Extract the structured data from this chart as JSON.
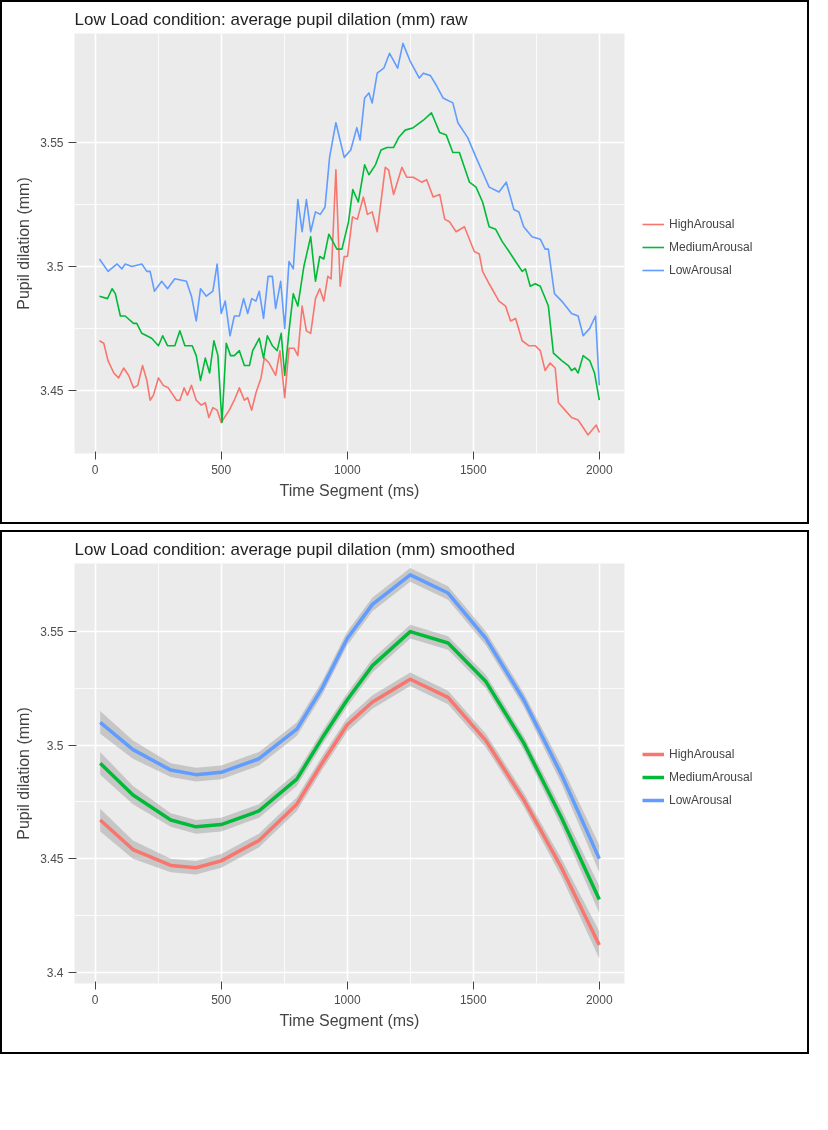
{
  "chart_data": [
    {
      "type": "line",
      "title": "Low Load condition: average pupil dilation (mm) raw",
      "xlabel": "Time Segment (ms)",
      "ylabel": "Pupil dilation (mm)",
      "xlim": [
        -82,
        2100
      ],
      "ylim": [
        3.4245,
        3.594
      ],
      "xticks": [
        0,
        500,
        1000,
        1500,
        2000
      ],
      "yticks": [
        3.45,
        3.5,
        3.55
      ],
      "grid": true,
      "legend": "right",
      "line_style": "solid",
      "series": [
        {
          "name": "HighArousal",
          "color": "#f8766d",
          "x": [
            17,
            34,
            51,
            74,
            93,
            113,
            133,
            152,
            169,
            188,
            205,
            218,
            231,
            251,
            270,
            290,
            323,
            336,
            353,
            366,
            382,
            401,
            421,
            437,
            451,
            467,
            484,
            500,
            532,
            552,
            572,
            592,
            605,
            621,
            638,
            658,
            671,
            690,
            716,
            733,
            752,
            769,
            789,
            804,
            821,
            838,
            855,
            874,
            891,
            907,
            923,
            936,
            955,
            972,
            988,
            1001,
            1021,
            1040,
            1064,
            1080,
            1099,
            1119,
            1151,
            1164,
            1184,
            1217,
            1236,
            1262,
            1295,
            1315,
            1341,
            1367,
            1387,
            1406,
            1432,
            1465,
            1504,
            1524,
            1537,
            1563,
            1602,
            1628,
            1648,
            1668,
            1694,
            1720,
            1746,
            1766,
            1785,
            1805,
            1825,
            1838,
            1864,
            1890,
            1916,
            1936,
            1955,
            1988,
            2000
          ],
          "values": [
            3.47,
            3.469,
            3.462,
            3.457,
            3.455,
            3.459,
            3.456,
            3.451,
            3.452,
            3.46,
            3.454,
            3.446,
            3.448,
            3.455,
            3.452,
            3.451,
            3.446,
            3.446,
            3.451,
            3.448,
            3.452,
            3.446,
            3.444,
            3.445,
            3.439,
            3.443,
            3.442,
            3.437,
            3.442,
            3.446,
            3.451,
            3.446,
            3.447,
            3.442,
            3.449,
            3.455,
            3.463,
            3.461,
            3.456,
            3.466,
            3.447,
            3.467,
            3.467,
            3.464,
            3.484,
            3.474,
            3.473,
            3.487,
            3.491,
            3.486,
            3.496,
            3.495,
            3.539,
            3.492,
            3.504,
            3.504,
            3.52,
            3.519,
            3.528,
            3.521,
            3.522,
            3.514,
            3.54,
            3.539,
            3.529,
            3.54,
            3.536,
            3.536,
            3.534,
            3.535,
            3.528,
            3.529,
            3.519,
            3.518,
            3.514,
            3.516,
            3.506,
            3.505,
            3.498,
            3.493,
            3.486,
            3.484,
            3.478,
            3.479,
            3.47,
            3.468,
            3.468,
            3.466,
            3.458,
            3.461,
            3.459,
            3.445,
            3.442,
            3.439,
            3.438,
            3.435,
            3.432,
            3.436,
            3.433
          ]
        },
        {
          "name": "MediumArousal",
          "color": "#00ba38",
          "x": [
            17,
            49,
            67,
            80,
            100,
            119,
            152,
            165,
            185,
            224,
            251,
            268,
            287,
            316,
            336,
            356,
            385,
            401,
            418,
            437,
            454,
            471,
            487,
            503,
            520,
            537,
            552,
            572,
            592,
            612,
            625,
            651,
            668,
            683,
            703,
            722,
            738,
            752,
            769,
            786,
            804,
            828,
            855,
            874,
            891,
            907,
            927,
            959,
            979,
            1005,
            1022,
            1044,
            1069,
            1086,
            1112,
            1134,
            1158,
            1184,
            1204,
            1230,
            1262,
            1302,
            1334,
            1367,
            1393,
            1419,
            1445,
            1485,
            1511,
            1537,
            1563,
            1589,
            1615,
            1642,
            1668,
            1694,
            1707,
            1726,
            1746,
            1766,
            1798,
            1818,
            1851,
            1877,
            1890,
            1903,
            1916,
            1936,
            1962,
            1981,
            2000
          ],
          "values": [
            3.488,
            3.487,
            3.491,
            3.489,
            3.48,
            3.48,
            3.477,
            3.477,
            3.473,
            3.471,
            3.468,
            3.472,
            3.468,
            3.468,
            3.474,
            3.468,
            3.468,
            3.464,
            3.454,
            3.463,
            3.457,
            3.47,
            3.464,
            3.437,
            3.469,
            3.464,
            3.464,
            3.466,
            3.46,
            3.46,
            3.466,
            3.471,
            3.463,
            3.472,
            3.468,
            3.466,
            3.473,
            3.456,
            3.474,
            3.489,
            3.484,
            3.5,
            3.512,
            3.494,
            3.504,
            3.503,
            3.513,
            3.507,
            3.507,
            3.518,
            3.531,
            3.526,
            3.541,
            3.537,
            3.541,
            3.547,
            3.548,
            3.548,
            3.552,
            3.555,
            3.556,
            3.559,
            3.562,
            3.554,
            3.553,
            3.546,
            3.546,
            3.534,
            3.532,
            3.526,
            3.516,
            3.515,
            3.51,
            3.506,
            3.502,
            3.498,
            3.499,
            3.492,
            3.493,
            3.492,
            3.484,
            3.465,
            3.462,
            3.46,
            3.458,
            3.459,
            3.457,
            3.464,
            3.462,
            3.457,
            3.446
          ]
        },
        {
          "name": "LowArousal",
          "color": "#619cff",
          "x": [
            17,
            51,
            87,
            106,
            119,
            146,
            185,
            205,
            218,
            235,
            264,
            287,
            316,
            362,
            382,
            401,
            418,
            441,
            467,
            484,
            500,
            516,
            535,
            552,
            572,
            589,
            605,
            621,
            638,
            651,
            668,
            686,
            703,
            716,
            736,
            752,
            769,
            786,
            804,
            821,
            838,
            855,
            874,
            893,
            912,
            930,
            955,
            988,
            1014,
            1038,
            1051,
            1069,
            1086,
            1099,
            1119,
            1145,
            1168,
            1200,
            1221,
            1249,
            1286,
            1302,
            1330,
            1354,
            1380,
            1419,
            1439,
            1478,
            1511,
            1537,
            1563,
            1602,
            1631,
            1661,
            1681,
            1700,
            1733,
            1766,
            1785,
            1798,
            1822,
            1851,
            1890,
            1916,
            1936,
            1962,
            1985,
            2000
          ],
          "values": [
            3.503,
            3.498,
            3.501,
            3.499,
            3.501,
            3.5,
            3.501,
            3.498,
            3.498,
            3.49,
            3.494,
            3.491,
            3.495,
            3.494,
            3.488,
            3.478,
            3.491,
            3.488,
            3.49,
            3.501,
            3.481,
            3.486,
            3.472,
            3.48,
            3.48,
            3.487,
            3.481,
            3.487,
            3.486,
            3.49,
            3.479,
            3.496,
            3.496,
            3.483,
            3.494,
            3.475,
            3.502,
            3.499,
            3.527,
            3.514,
            3.527,
            3.514,
            3.522,
            3.521,
            3.524,
            3.544,
            3.558,
            3.544,
            3.547,
            3.556,
            3.551,
            3.568,
            3.57,
            3.566,
            3.578,
            3.58,
            3.586,
            3.58,
            3.59,
            3.583,
            3.576,
            3.578,
            3.577,
            3.573,
            3.568,
            3.566,
            3.558,
            3.552,
            3.544,
            3.538,
            3.532,
            3.53,
            3.534,
            3.523,
            3.522,
            3.516,
            3.512,
            3.511,
            3.507,
            3.507,
            3.489,
            3.486,
            3.481,
            3.48,
            3.472,
            3.475,
            3.48,
            3.452
          ]
        }
      ]
    },
    {
      "type": "line",
      "title": "Low Load condition: average pupil dilation (mm) smoothed",
      "xlabel": "Time Segment (ms)",
      "ylabel": "Pupil dilation (mm)",
      "xlim": [
        -82,
        2100
      ],
      "ylim": [
        3.395,
        3.58
      ],
      "xticks": [
        0,
        500,
        1000,
        1500,
        2000
      ],
      "yticks": [
        3.4,
        3.45,
        3.5,
        3.55
      ],
      "grid": true,
      "legend": "right",
      "line_style": "solid",
      "x": [
        20,
        150,
        300,
        400,
        500,
        650,
        800,
        900,
        1000,
        1100,
        1250,
        1400,
        1550,
        1700,
        1850,
        2000
      ],
      "series": [
        {
          "name": "HighArousal",
          "color": "#f8766d",
          "values": [
            3.467,
            3.454,
            3.447,
            3.446,
            3.449,
            3.458,
            3.474,
            3.492,
            3.509,
            3.519,
            3.529,
            3.521,
            3.502,
            3.476,
            3.446,
            3.412
          ],
          "lower": [
            3.462,
            3.45,
            3.444,
            3.443,
            3.446,
            3.455,
            3.471,
            3.489,
            3.506,
            3.516,
            3.526,
            3.518,
            3.499,
            3.473,
            3.442,
            3.406
          ],
          "upper": [
            3.472,
            3.458,
            3.45,
            3.449,
            3.452,
            3.461,
            3.477,
            3.495,
            3.512,
            3.522,
            3.532,
            3.524,
            3.505,
            3.479,
            3.45,
            3.418
          ]
        },
        {
          "name": "MediumArousal",
          "color": "#00ba38",
          "values": [
            3.492,
            3.478,
            3.467,
            3.464,
            3.465,
            3.471,
            3.485,
            3.503,
            3.52,
            3.535,
            3.55,
            3.545,
            3.528,
            3.501,
            3.468,
            3.432
          ],
          "lower": [
            3.487,
            3.474,
            3.464,
            3.461,
            3.462,
            3.468,
            3.482,
            3.5,
            3.517,
            3.532,
            3.547,
            3.542,
            3.525,
            3.498,
            3.464,
            3.426
          ],
          "upper": [
            3.497,
            3.482,
            3.47,
            3.467,
            3.468,
            3.474,
            3.488,
            3.506,
            3.523,
            3.538,
            3.553,
            3.548,
            3.531,
            3.504,
            3.472,
            3.438
          ]
        },
        {
          "name": "LowArousal",
          "color": "#619cff",
          "values": [
            3.51,
            3.498,
            3.489,
            3.487,
            3.488,
            3.494,
            3.507,
            3.525,
            3.547,
            3.562,
            3.575,
            3.567,
            3.547,
            3.52,
            3.487,
            3.45
          ],
          "lower": [
            3.505,
            3.494,
            3.486,
            3.484,
            3.485,
            3.491,
            3.504,
            3.522,
            3.544,
            3.559,
            3.572,
            3.564,
            3.544,
            3.517,
            3.483,
            3.444
          ],
          "upper": [
            3.515,
            3.502,
            3.492,
            3.49,
            3.491,
            3.497,
            3.51,
            3.528,
            3.55,
            3.565,
            3.578,
            3.57,
            3.55,
            3.523,
            3.491,
            3.456
          ]
        }
      ]
    }
  ]
}
